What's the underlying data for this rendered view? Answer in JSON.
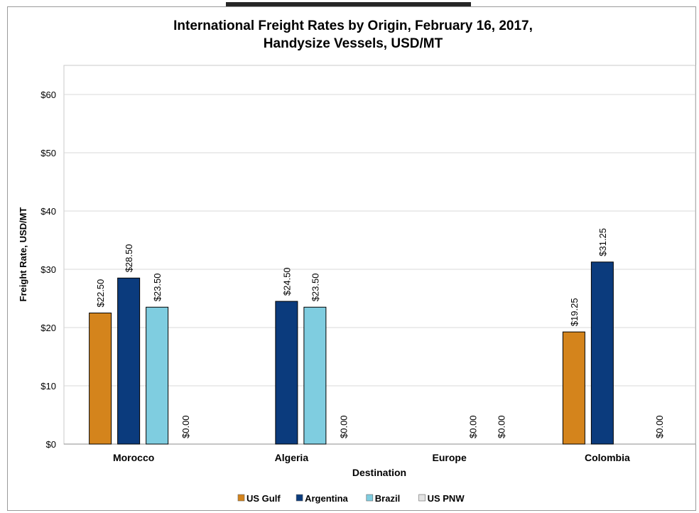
{
  "chart_data": {
    "type": "bar",
    "title_line1": "International Freight Rates by Origin, February 16, 2017,",
    "title_line2": "Handysize Vessels, USD/MT",
    "xlabel": "Destination",
    "ylabel": "Freight Rate, USD/MT",
    "ylim": [
      0,
      65
    ],
    "yticks": [
      0,
      10,
      20,
      30,
      40,
      50,
      60
    ],
    "ytick_labels": [
      "$0",
      "$10",
      "$20",
      "$30",
      "$40",
      "$50",
      "$60"
    ],
    "grid": true,
    "legend_position": "bottom",
    "categories": [
      "Morocco",
      "Algeria",
      "Europe",
      "Colombia"
    ],
    "series": [
      {
        "name": "US Gulf",
        "color": "#d4841c",
        "values": [
          22.5,
          null,
          null,
          19.25
        ],
        "labels": [
          "$22.50",
          null,
          null,
          "$19.25"
        ]
      },
      {
        "name": "Argentina",
        "color": "#0b3b7d",
        "values": [
          28.5,
          24.5,
          null,
          31.25
        ],
        "labels": [
          "$28.50",
          "$24.50",
          null,
          "$31.25"
        ]
      },
      {
        "name": "Brazil",
        "color": "#7fcde0",
        "values": [
          23.5,
          23.5,
          0,
          null
        ],
        "labels": [
          "$23.50",
          "$23.50",
          "$0.00",
          null
        ]
      },
      {
        "name": "US PNW",
        "color": "#e4e4e4",
        "values": [
          0,
          0,
          0,
          0
        ],
        "labels": [
          "$0.00",
          "$0.00",
          "$0.00",
          "$0.00"
        ]
      }
    ]
  }
}
